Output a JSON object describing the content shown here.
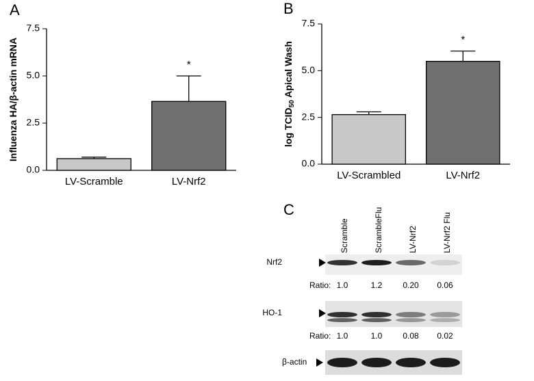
{
  "chart_data": [
    {
      "type": "bar",
      "panel_label": "A",
      "y_label": [
        "Influenza HA/β-actin mRNA"
      ],
      "categories": [
        "LV-Scramble",
        "LV-Nrf2"
      ],
      "values": [
        0.62,
        3.65
      ],
      "errors": [
        0.08,
        1.35
      ],
      "colors": [
        "#c8c8c8",
        "#707070"
      ],
      "ylim": [
        0,
        7.5
      ],
      "yticks": [
        {
          "value": 0,
          "label": "0.0"
        },
        2.5,
        {
          "value": 5,
          "label": "5.0"
        },
        7.5
      ],
      "annotations": [
        {
          "text": "*",
          "category": "LV-Nrf2"
        }
      ]
    },
    {
      "type": "bar",
      "panel_label": "B",
      "y_label": [
        "log TCID",
        "50",
        " Apical Wash"
      ],
      "categories": [
        "LV-Scrambled",
        "LV-Nrf2"
      ],
      "values": [
        2.65,
        5.5
      ],
      "errors": [
        0.15,
        0.55
      ],
      "colors": [
        "#c8c8c8",
        "#707070"
      ],
      "ylim": [
        0,
        7.5
      ],
      "yticks": [
        {
          "value": 0,
          "label": "0.0"
        },
        2.5,
        {
          "value": 5,
          "label": "5.0"
        },
        7.5
      ],
      "annotations": [
        {
          "text": "*",
          "category": "LV-Nrf2"
        }
      ]
    }
  ],
  "blot": {
    "panel_label": "C",
    "lanes": [
      "Scramble",
      "ScrambleFlu",
      "LV-Nrf2",
      "LV-Nrf2 Flu"
    ],
    "rows": [
      {
        "label": "Nrf2",
        "ratio_label": "Ratio:",
        "ratios": [
          "1.0",
          "1.2",
          "0.20",
          "0.06"
        ]
      },
      {
        "label": "HO-1",
        "ratio_label": "Ratio:",
        "ratios": [
          "1.0",
          "1.0",
          "0.08",
          "0.02"
        ]
      },
      {
        "label": "β-actin"
      }
    ]
  }
}
